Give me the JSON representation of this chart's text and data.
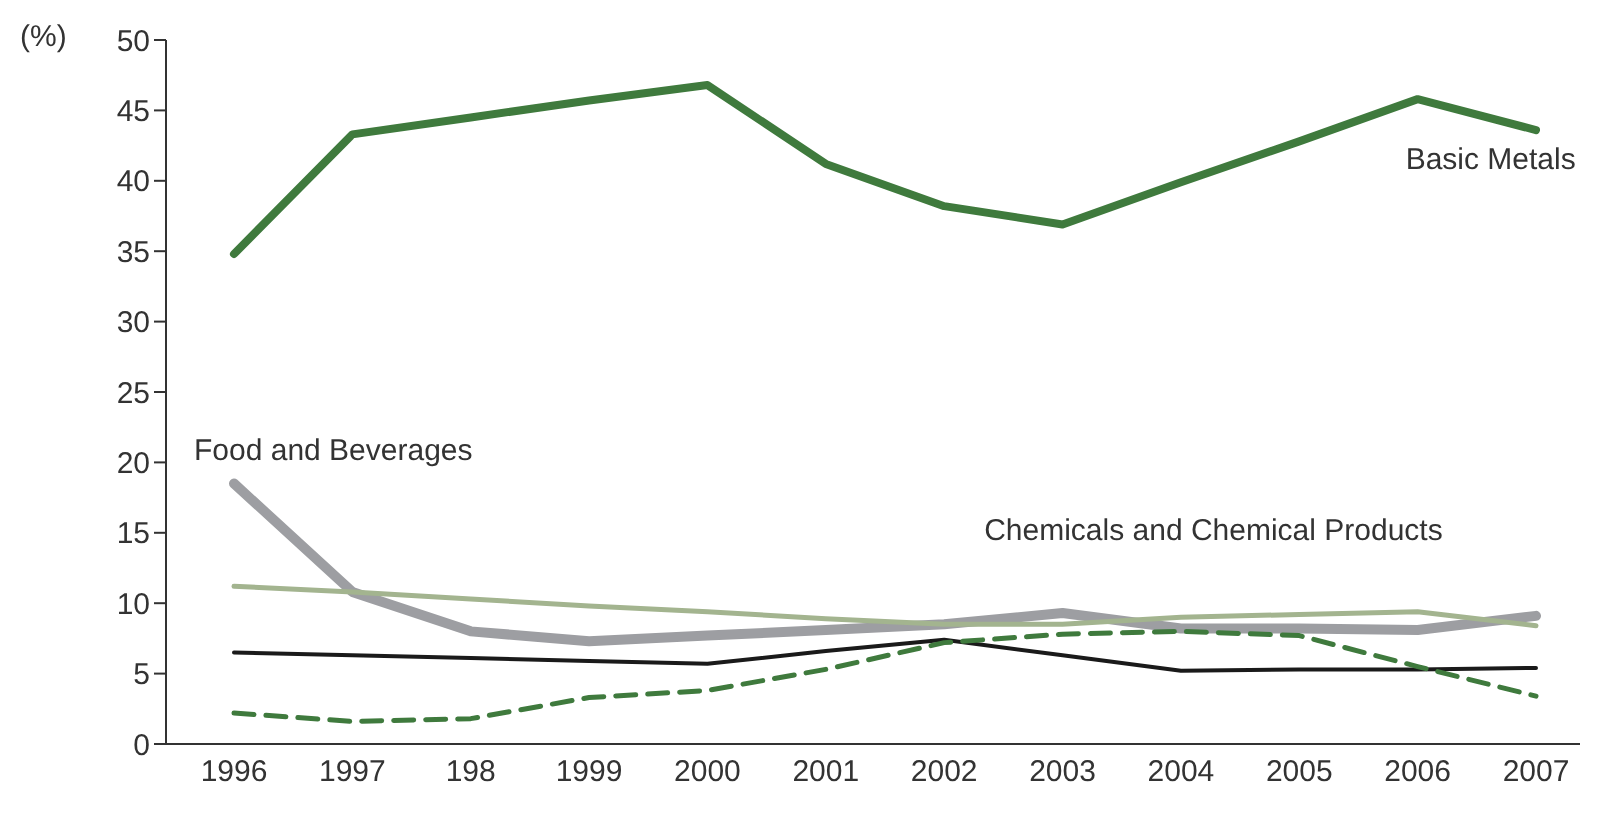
{
  "chart_data": {
    "type": "line",
    "ylabel": "(%)",
    "categories": [
      "1996",
      "1997",
      "198",
      "1999",
      "2000",
      "2001",
      "2002",
      "2003",
      "2004",
      "2005",
      "2006",
      "2007"
    ],
    "ylim": [
      0,
      50
    ],
    "yticks": [
      0,
      5,
      10,
      15,
      20,
      25,
      30,
      35,
      40,
      45,
      50
    ],
    "grid": false,
    "legend": false,
    "marker": "none",
    "series": [
      {
        "name": "Basic Metals",
        "color": "#3f7a3d",
        "line_style": "solid",
        "values": [
          34.8,
          43.3,
          44.5,
          45.7,
          46.8,
          41.2,
          38.2,
          36.9,
          39.9,
          42.8,
          45.8,
          43.6
        ]
      },
      {
        "name": "Food and Beverages",
        "color": "#9d9ea2",
        "line_style": "solid",
        "values": [
          18.5,
          10.8,
          8.0,
          7.3,
          7.7,
          8.1,
          8.5,
          9.3,
          8.2,
          8.2,
          8.1,
          9.1
        ]
      },
      {
        "name": "Chemicals and Chemical Products",
        "color": "#a3b48f",
        "line_style": "solid",
        "values": [
          11.2,
          10.8,
          10.3,
          9.8,
          9.4,
          8.9,
          8.5,
          8.5,
          9.0,
          9.2,
          9.4,
          8.4
        ]
      },
      {
        "color": "#1a1a1a",
        "line_style": "solid",
        "values": [
          6.5,
          6.3,
          6.1,
          5.9,
          5.7,
          6.6,
          7.4,
          6.3,
          5.2,
          5.3,
          5.3,
          5.4
        ]
      },
      {
        "color": "#3f7a3d",
        "line_style": "dashed",
        "values": [
          2.2,
          1.6,
          1.8,
          3.3,
          3.8,
          5.3,
          7.2,
          7.8,
          8.0,
          7.7,
          5.5,
          3.4
        ]
      }
    ]
  }
}
